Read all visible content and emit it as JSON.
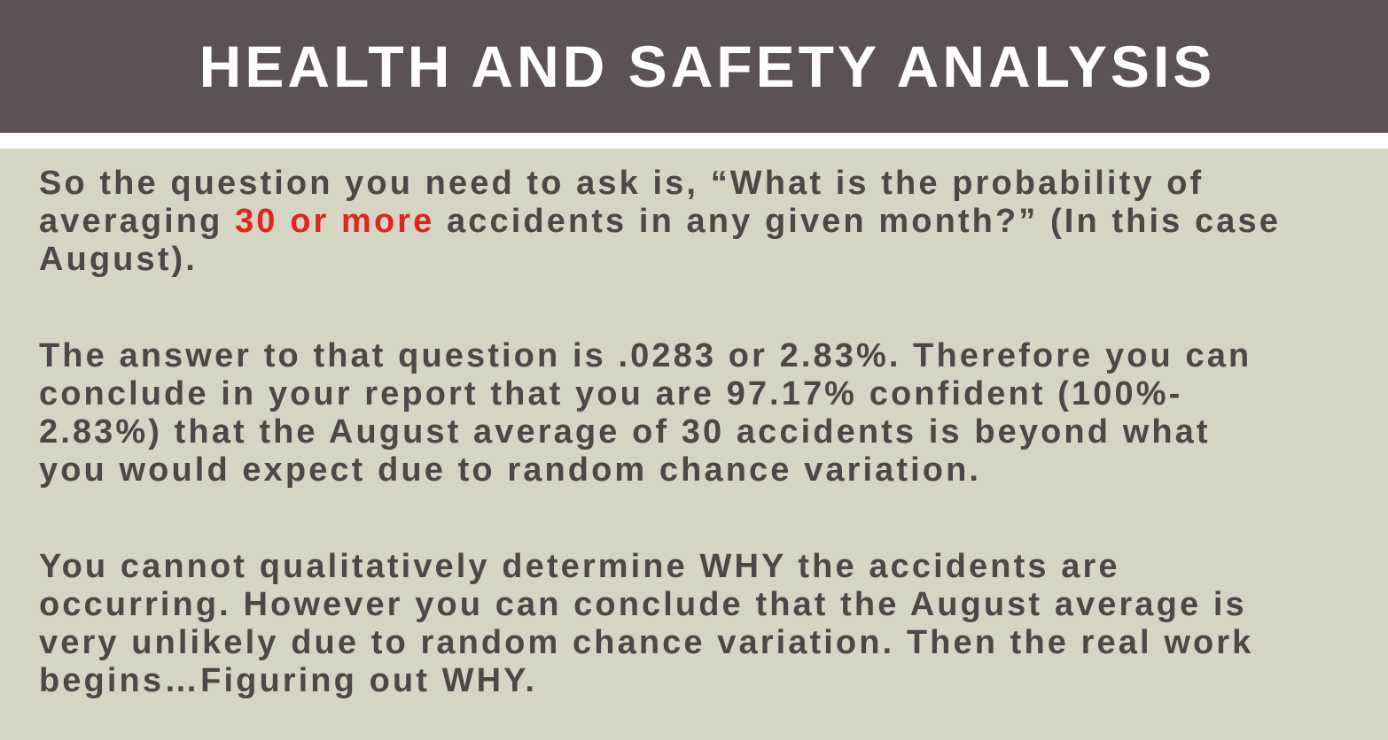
{
  "header": {
    "title": "HEALTH AND SAFETY ANALYSIS"
  },
  "body": {
    "paragraph1": {
      "line1": "So the question you need to ask is, “What is the probability of",
      "line2_before": "averaging ",
      "line2_highlight": "30 or more",
      "line2_after": " accidents in any given month?” (In this case",
      "line3": "August)."
    },
    "paragraph2": {
      "line1": "The answer to that question is .0283 or 2.83%. Therefore you can",
      "line2": "conclude in your report that you are 97.17% confident (100%-",
      "line3": "2.83%) that the August average of 30 accidents is beyond what",
      "line4": "you would expect due to random chance variation."
    },
    "paragraph3": {
      "line1": "You cannot qualitatively determine WHY the accidents are",
      "line2": "occurring. However you can conclude that the August average is",
      "line3": "very unlikely due to random chance variation. Then the real work",
      "line4": "begins…Figuring out WHY."
    }
  },
  "colors": {
    "header_background": "#5a5254",
    "body_background": "#d4d6c3",
    "text": "#4d4845",
    "highlight": "#e0261c"
  }
}
